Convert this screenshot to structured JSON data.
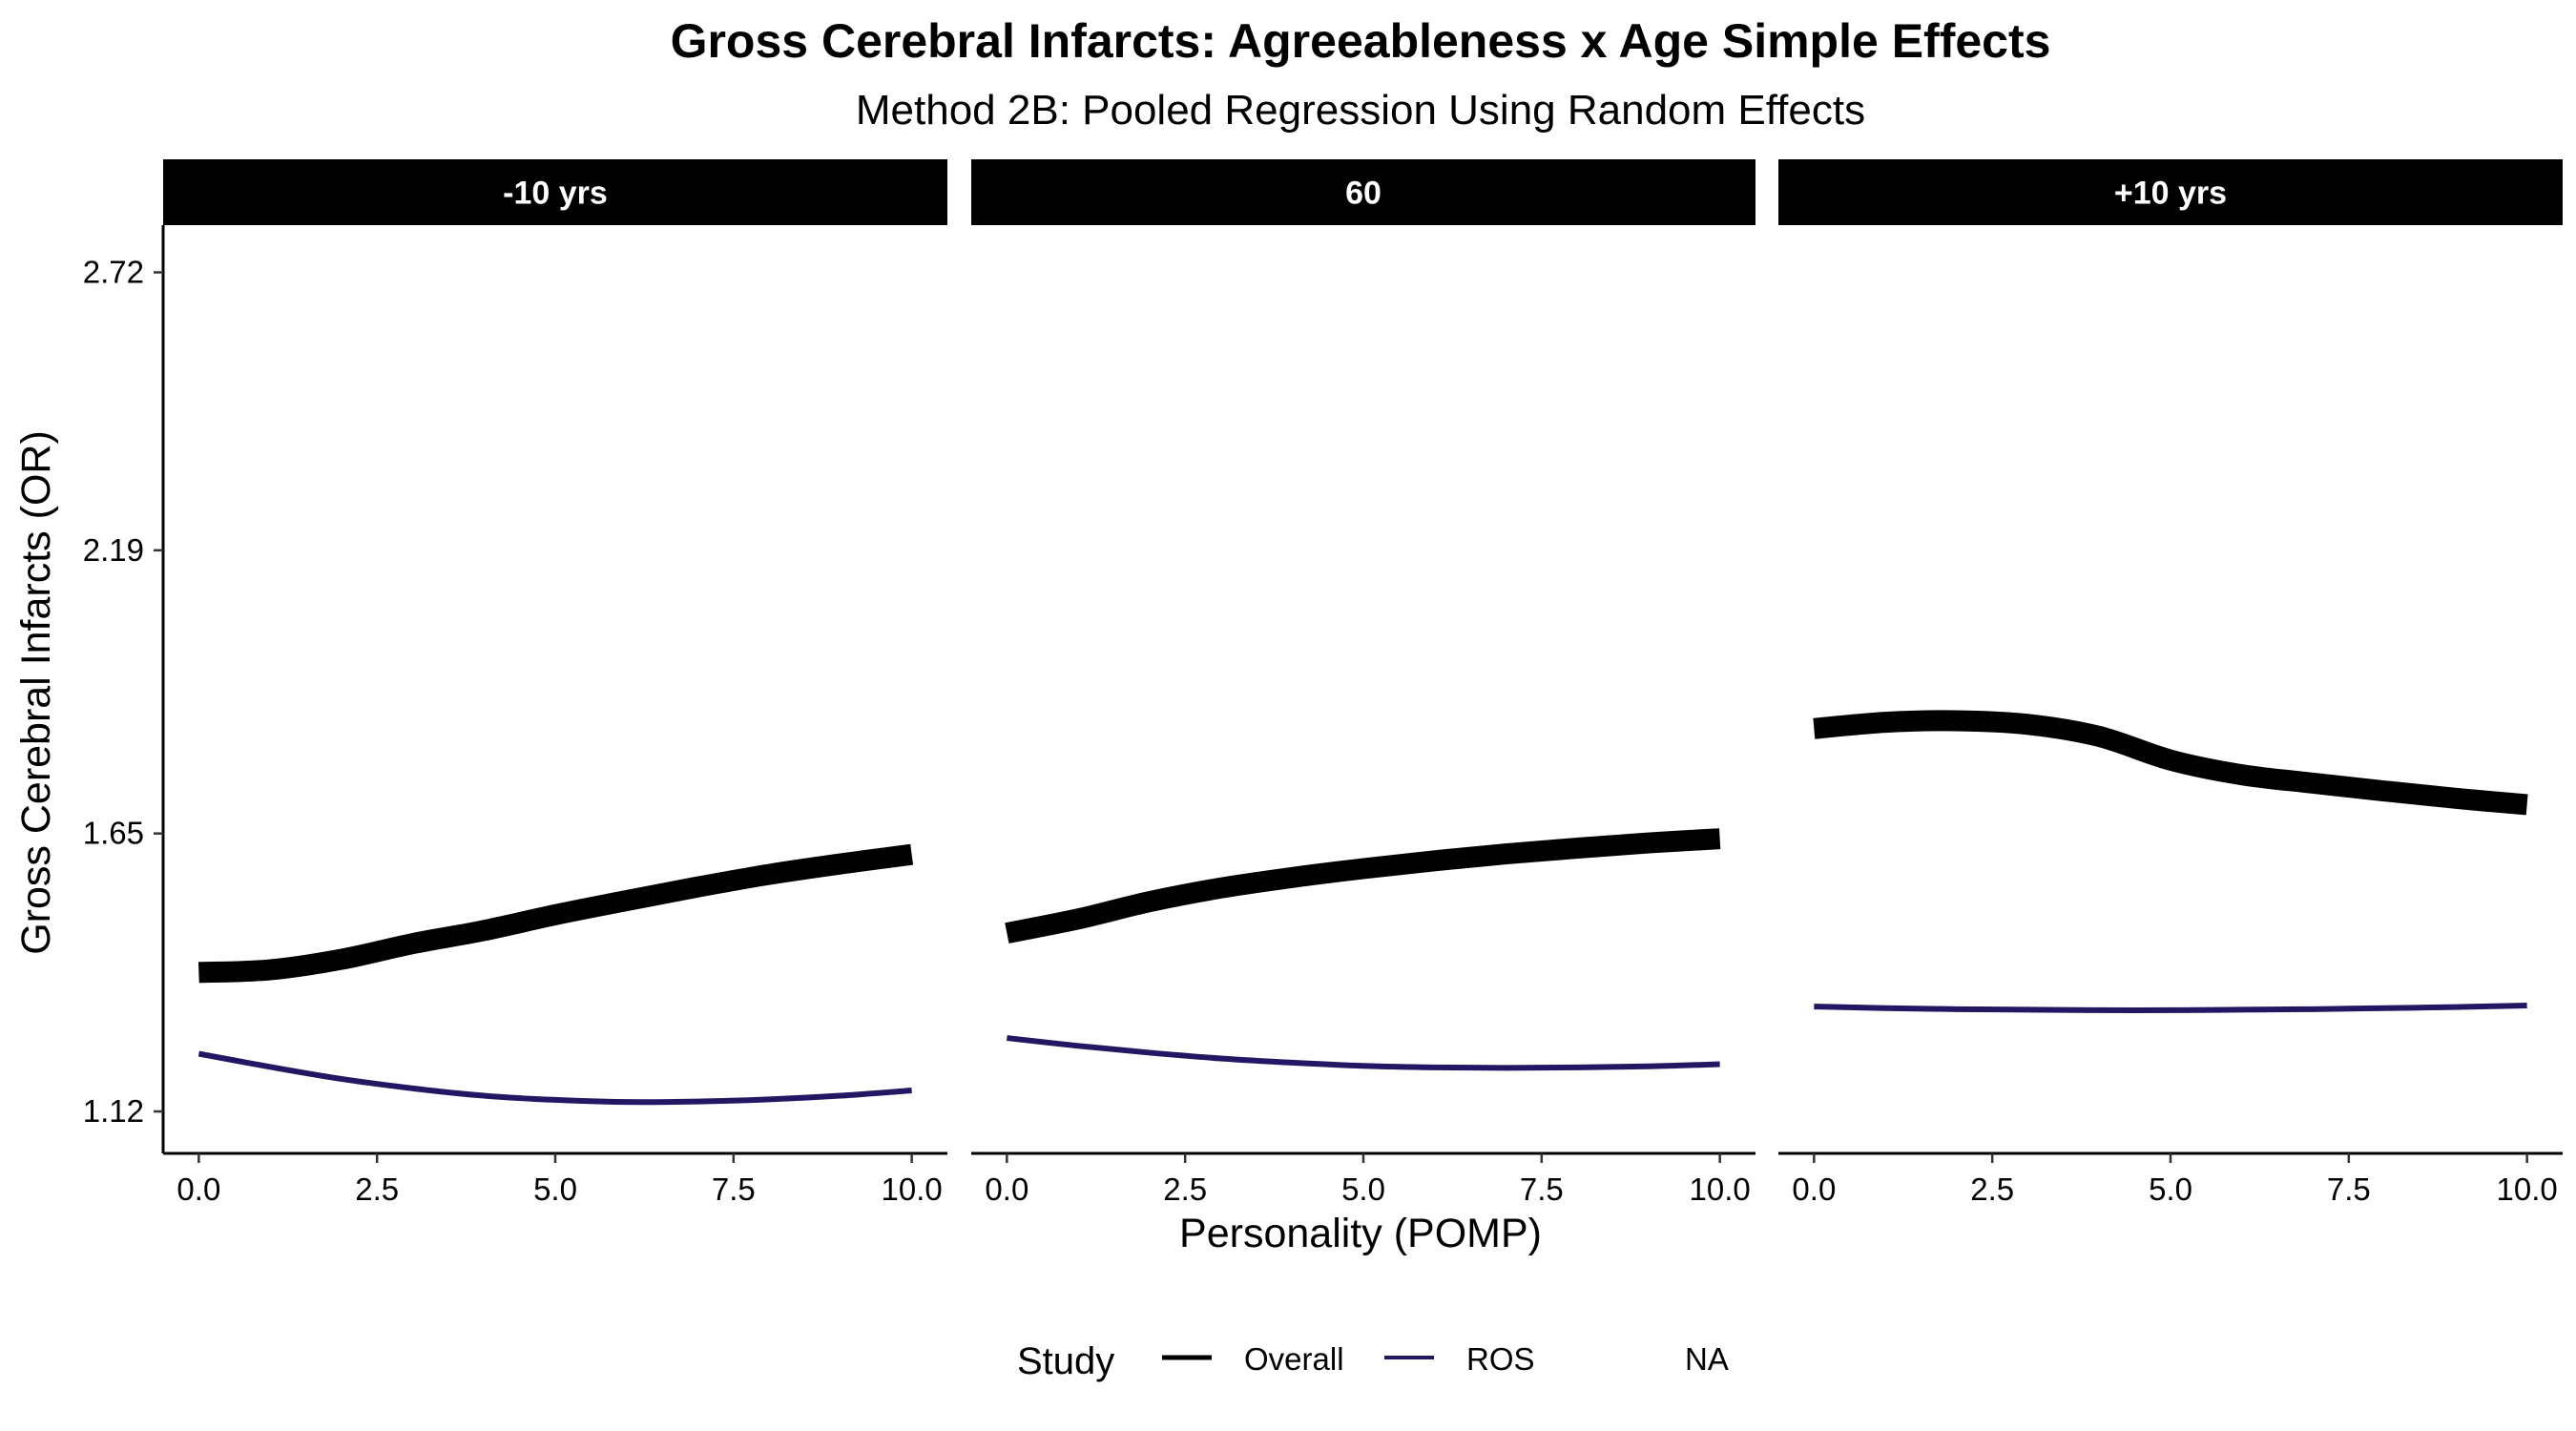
{
  "chart_data": {
    "type": "line",
    "title": "Gross Cerebral Infarcts: Agreeableness x Age Simple Effects",
    "subtitle": "Method 2B: Pooled Regression Using Random Effects",
    "xlabel": "Personality (POMP)",
    "ylabel": "Gross Cerebral Infarcts (OR)",
    "x_ticks": [
      "0.0",
      "2.5",
      "5.0",
      "7.5",
      "10.0"
    ],
    "y_ticks": [
      "1.12",
      "1.65",
      "2.19",
      "2.72"
    ],
    "xlim": [
      -0.5,
      10.5
    ],
    "ylim": [
      1.04,
      2.81
    ],
    "y_tick_values": [
      1.12,
      1.65,
      2.19,
      2.72
    ],
    "grid": false,
    "legend": {
      "title": "Study",
      "placement": "bottom",
      "entries": [
        {
          "label": "Overall",
          "color": "#000000"
        },
        {
          "label": "ROS",
          "color": "#221763"
        },
        {
          "label": "NA",
          "color": "#ffffff"
        }
      ]
    },
    "panels": [
      {
        "label": "-10 yrs",
        "series": [
          {
            "name": "Overall",
            "color": "#000000",
            "x": [
              0,
              1,
              2,
              3,
              4,
              5,
              6,
              7,
              8,
              9,
              10
            ],
            "y": [
              1.385,
              1.39,
              1.41,
              1.44,
              1.465,
              1.495,
              1.522,
              1.548,
              1.572,
              1.592,
              1.61
            ]
          },
          {
            "name": "ROS",
            "color": "#221763",
            "x": [
              0,
              1,
              2,
              3,
              4,
              5,
              6,
              7,
              8,
              9,
              10
            ],
            "y": [
              1.23,
              1.205,
              1.182,
              1.164,
              1.15,
              1.142,
              1.138,
              1.139,
              1.143,
              1.15,
              1.16
            ]
          }
        ]
      },
      {
        "label": "60",
        "series": [
          {
            "name": "Overall",
            "color": "#000000",
            "x": [
              0,
              1,
              2,
              3,
              4,
              5,
              6,
              7,
              8,
              9,
              10
            ],
            "y": [
              1.46,
              1.487,
              1.52,
              1.546,
              1.566,
              1.583,
              1.598,
              1.611,
              1.622,
              1.632,
              1.64
            ]
          },
          {
            "name": "ROS",
            "color": "#221763",
            "x": [
              0,
              1,
              2,
              3,
              4,
              5,
              6,
              7,
              8,
              9,
              10
            ],
            "y": [
              1.26,
              1.245,
              1.232,
              1.221,
              1.213,
              1.207,
              1.204,
              1.203,
              1.204,
              1.206,
              1.21
            ]
          }
        ]
      },
      {
        "label": "+10 yrs",
        "series": [
          {
            "name": "Overall",
            "color": "#000000",
            "x": [
              0,
              1,
              2,
              3,
              4,
              5,
              6,
              7,
              8,
              9,
              10
            ],
            "y": [
              1.85,
              1.862,
              1.865,
              1.858,
              1.835,
              1.79,
              1.762,
              1.746,
              1.731,
              1.717,
              1.705
            ]
          },
          {
            "name": "ROS",
            "color": "#221763",
            "x": [
              0,
              1,
              2,
              3,
              4,
              5,
              6,
              7,
              8,
              9,
              10
            ],
            "y": [
              1.32,
              1.317,
              1.315,
              1.314,
              1.313,
              1.313,
              1.314,
              1.315,
              1.317,
              1.319,
              1.322
            ]
          }
        ]
      }
    ]
  }
}
